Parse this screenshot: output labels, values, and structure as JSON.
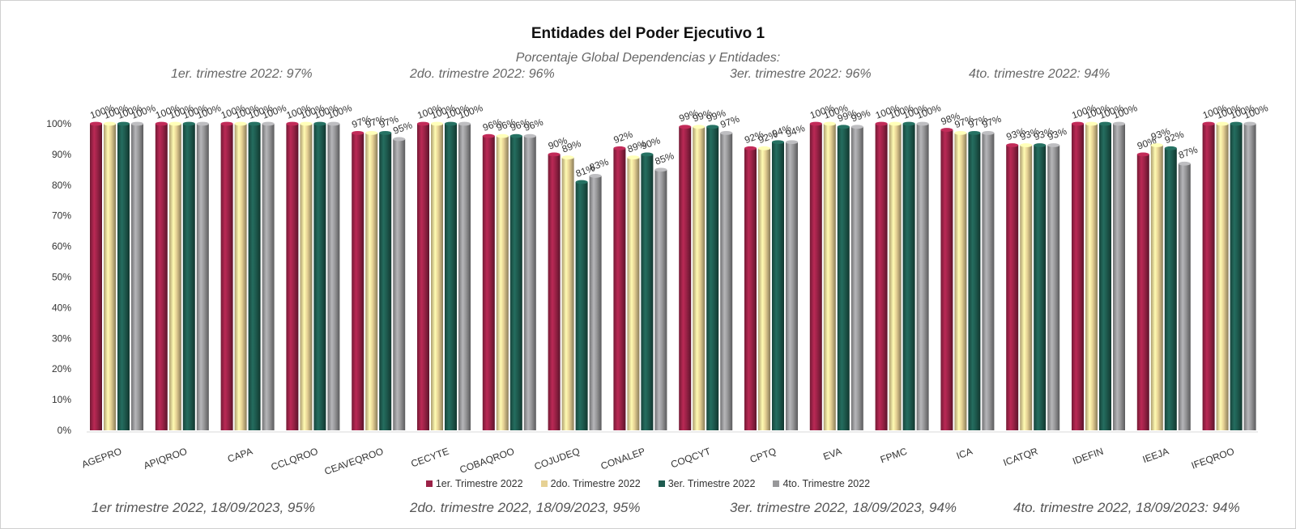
{
  "title": "Entidades del Poder Ejecutivo 1",
  "subtitle": "Porcentaje Global  Dependencias y Entidades:",
  "quarter_summaries": [
    "1er. trimestre 2022: 97%",
    "2do. trimestre 2022: 96%",
    "3er. trimestre 2022: 96%",
    "4to. trimestre 2022: 94%"
  ],
  "footer_summaries": [
    "1er trimestre  2022,  18/09/2023, 95%",
    "2do. trimestre 2022, 18/09/2023, 95%",
    "3er. trimestre 2022, 18/09/2023, 94%",
    "4to. trimestre 2022, 18/09/2023: 94%"
  ],
  "chart_data": {
    "type": "bar",
    "categories": [
      "AGEPRO",
      "APIQROO",
      "CAPA",
      "CCLQROO",
      "CEAVEQROO",
      "CECYTE",
      "COBAQROO",
      "COJUDEQ",
      "CONALEP",
      "COQCYT",
      "CPTQ",
      "EVA",
      "FPMC",
      "ICA",
      "ICATQR",
      "IDEFIN",
      "IEEJA",
      "IFEQROO"
    ],
    "series": [
      {
        "name": "1er. Trimestre 2022",
        "color": "#9b2247",
        "values": [
          100,
          100,
          100,
          100,
          97,
          100,
          96,
          90,
          92,
          99,
          92,
          100,
          100,
          98,
          93,
          100,
          90,
          100
        ]
      },
      {
        "name": "2do. Trimestre 2022",
        "color": "#e6d194",
        "values": [
          100,
          100,
          100,
          100,
          97,
          100,
          96,
          89,
          89,
          99,
          92,
          100,
          100,
          97,
          93,
          100,
          93,
          100
        ]
      },
      {
        "name": "3er. Trimestre 2022",
        "color": "#1e5b4f",
        "values": [
          100,
          100,
          100,
          100,
          97,
          100,
          96,
          81,
          90,
          99,
          94,
          99,
          100,
          97,
          93,
          100,
          92,
          100
        ]
      },
      {
        "name": "4to. Trimestre 2022",
        "color": "#98989a",
        "values": [
          100,
          100,
          100,
          100,
          95,
          100,
          96,
          83,
          85,
          97,
          94,
          99,
          100,
          97,
          93,
          100,
          87,
          100
        ]
      }
    ],
    "y_ticks": [
      "0%",
      "10%",
      "20%",
      "30%",
      "40%",
      "50%",
      "60%",
      "70%",
      "80%",
      "90%",
      "100%"
    ],
    "ylim": [
      0,
      100
    ],
    "value_suffix": "%",
    "grid": false,
    "legend_position": "bottom"
  }
}
